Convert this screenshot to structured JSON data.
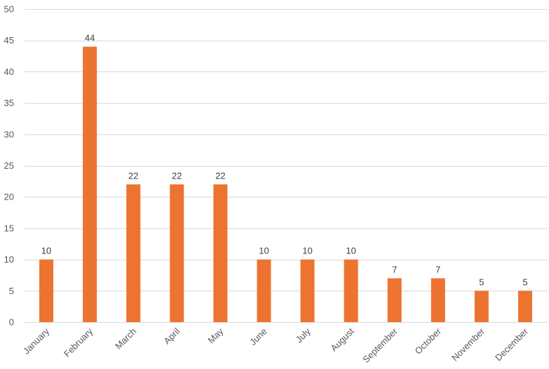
{
  "chart_data": {
    "type": "bar",
    "title": "",
    "xlabel": "",
    "ylabel": "",
    "categories": [
      "January",
      "February",
      "March",
      "April",
      "May",
      "June",
      "July",
      "August",
      "September",
      "October",
      "November",
      "December"
    ],
    "values": [
      10,
      44,
      22,
      22,
      22,
      10,
      10,
      10,
      7,
      7,
      5,
      5
    ],
    "ylim": [
      0,
      50
    ],
    "yticks": [
      0,
      5,
      10,
      15,
      20,
      25,
      30,
      35,
      40,
      45,
      50
    ],
    "grid": true,
    "legend": "none",
    "data_labels": true,
    "x_tick_rotation": "45° counter-clockwise",
    "colors": {
      "bar": "#ED7331",
      "gridline": "#d9d9d9",
      "tick_text": "#595959",
      "label_text": "#404040"
    }
  }
}
